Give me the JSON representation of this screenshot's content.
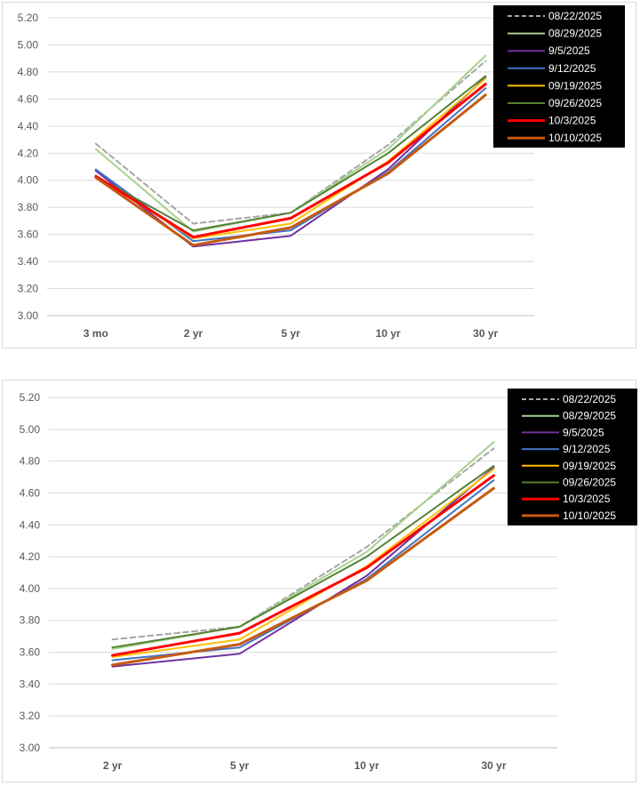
{
  "chart_data": [
    {
      "type": "line",
      "categories": [
        "3 mo",
        "2 yr",
        "5 yr",
        "10 yr",
        "30 yr"
      ],
      "ylim": [
        3.0,
        5.2
      ],
      "yticks": [
        "3.00",
        "3.20",
        "3.40",
        "3.60",
        "3.80",
        "4.00",
        "4.20",
        "4.40",
        "4.60",
        "4.80",
        "5.00",
        "5.20"
      ],
      "grid": true,
      "legend_position": "top-right",
      "series": [
        {
          "name": "08/22/2025",
          "color": "#a6a6a6",
          "dashed": true,
          "width": 2,
          "values": [
            4.27,
            3.68,
            3.76,
            4.26,
            4.88
          ]
        },
        {
          "name": "08/29/2025",
          "color": "#a9d18e",
          "dashed": false,
          "width": 2,
          "values": [
            4.23,
            3.62,
            3.76,
            4.23,
            4.92
          ]
        },
        {
          "name": "9/5/2025",
          "color": "#7030a0",
          "dashed": false,
          "width": 2,
          "values": [
            4.07,
            3.51,
            3.59,
            4.08,
            4.76
          ]
        },
        {
          "name": "9/12/2025",
          "color": "#4472c4",
          "dashed": false,
          "width": 2,
          "values": [
            4.08,
            3.55,
            3.63,
            4.06,
            4.68
          ]
        },
        {
          "name": "09/19/2025",
          "color": "#ffc000",
          "dashed": false,
          "width": 2,
          "values": [
            4.03,
            3.57,
            3.68,
            4.14,
            4.75
          ]
        },
        {
          "name": "09/26/2025",
          "color": "#548235",
          "dashed": false,
          "width": 2,
          "values": [
            4.03,
            3.63,
            3.76,
            4.2,
            4.77
          ]
        },
        {
          "name": "10/3/2025",
          "color": "#ff0000",
          "dashed": false,
          "width": 3,
          "values": [
            4.03,
            3.58,
            3.72,
            4.13,
            4.71
          ]
        },
        {
          "name": "10/10/2025",
          "color": "#c55a11",
          "dashed": false,
          "width": 3,
          "values": [
            4.02,
            3.52,
            3.65,
            4.05,
            4.63
          ]
        }
      ]
    },
    {
      "type": "line",
      "categories": [
        "2 yr",
        "5 yr",
        "10 yr",
        "30 yr"
      ],
      "ylim": [
        3.0,
        5.2
      ],
      "yticks": [
        "3.00",
        "3.20",
        "3.40",
        "3.60",
        "3.80",
        "4.00",
        "4.20",
        "4.40",
        "4.60",
        "4.80",
        "5.00",
        "5.20"
      ],
      "grid": true,
      "legend_position": "top-right",
      "series": [
        {
          "name": "08/22/2025",
          "color": "#a6a6a6",
          "dashed": true,
          "width": 2,
          "values": [
            3.68,
            3.76,
            4.26,
            4.88
          ]
        },
        {
          "name": "08/29/2025",
          "color": "#a9d18e",
          "dashed": false,
          "width": 2,
          "values": [
            3.62,
            3.76,
            4.23,
            4.92
          ]
        },
        {
          "name": "9/5/2025",
          "color": "#7030a0",
          "dashed": false,
          "width": 2,
          "values": [
            3.51,
            3.59,
            4.08,
            4.76
          ]
        },
        {
          "name": "9/12/2025",
          "color": "#4472c4",
          "dashed": false,
          "width": 2,
          "values": [
            3.55,
            3.63,
            4.06,
            4.68
          ]
        },
        {
          "name": "09/19/2025",
          "color": "#ffc000",
          "dashed": false,
          "width": 2,
          "values": [
            3.57,
            3.68,
            4.14,
            4.75
          ]
        },
        {
          "name": "09/26/2025",
          "color": "#548235",
          "dashed": false,
          "width": 2,
          "values": [
            3.63,
            3.76,
            4.2,
            4.77
          ]
        },
        {
          "name": "10/3/2025",
          "color": "#ff0000",
          "dashed": false,
          "width": 3,
          "values": [
            3.58,
            3.72,
            4.13,
            4.71
          ]
        },
        {
          "name": "10/10/2025",
          "color": "#c55a11",
          "dashed": false,
          "width": 3,
          "values": [
            3.52,
            3.65,
            4.05,
            4.63
          ]
        }
      ]
    }
  ]
}
